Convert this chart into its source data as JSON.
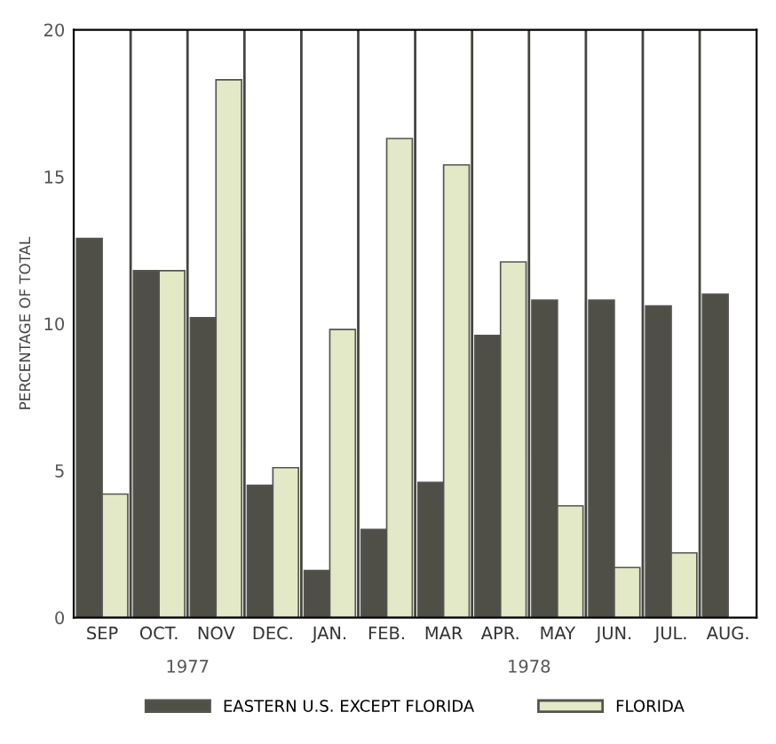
{
  "chart_data": {
    "type": "bar",
    "ylabel": "PERCENTAGE OF TOTAL",
    "categories": [
      "SEP",
      "OCT.",
      "NOV",
      "DEC.",
      "JAN.",
      "FEB.",
      "MAR",
      "APR.",
      "MAY",
      "JUN.",
      "JUL.",
      "AUG."
    ],
    "series": [
      {
        "name": "EASTERN U.S. EXCEPT FLORIDA",
        "color": "#4f4f48",
        "values": [
          12.9,
          11.8,
          10.2,
          4.5,
          1.6,
          3.0,
          4.6,
          9.6,
          10.8,
          10.8,
          10.6,
          11.0
        ]
      },
      {
        "name": "FLORIDA",
        "color": "#e3e8c6",
        "values": [
          4.2,
          11.8,
          18.3,
          5.1,
          9.8,
          16.3,
          15.4,
          12.1,
          3.8,
          1.7,
          2.2,
          null
        ]
      }
    ],
    "ylim": [
      0,
      20
    ],
    "yticks": [
      0,
      5,
      10,
      15,
      20
    ],
    "grid": "x",
    "legend": "bottom",
    "annotations": [
      "1977",
      "1978"
    ]
  }
}
